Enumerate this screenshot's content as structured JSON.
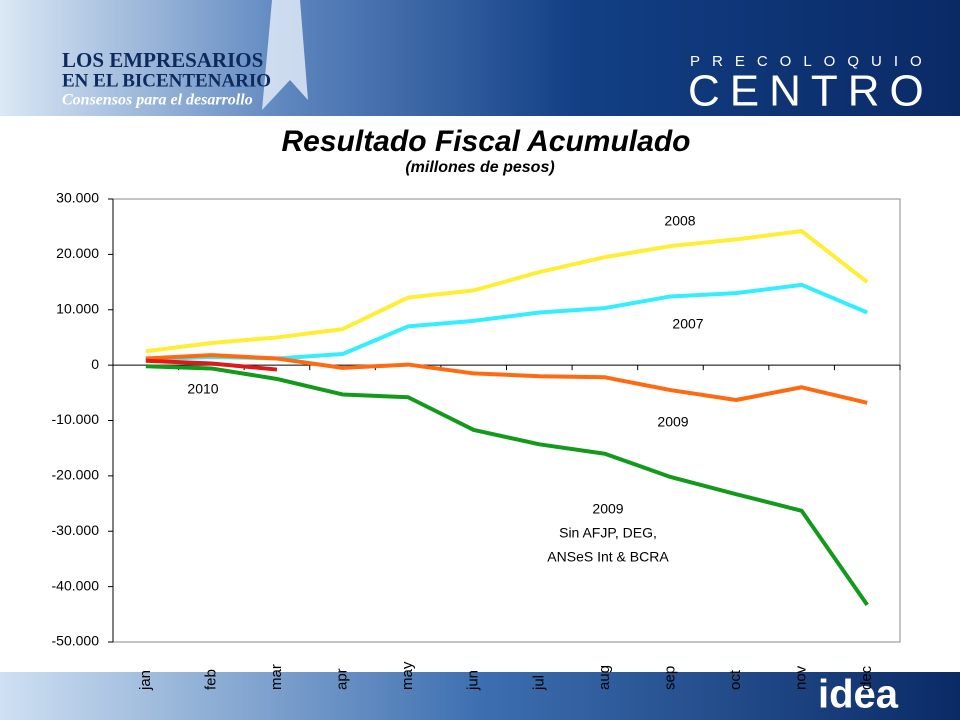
{
  "header": {
    "org_line1": "LOS EMPRESARIOS",
    "org_line2": "EN EL BICENTENARIO",
    "org_tagline": "Consensos para el desarrollo",
    "event_top": "PRECOLOQUIO",
    "event_main": "CENTRO"
  },
  "footer": {
    "brand": "idea"
  },
  "chart_data": {
    "type": "line",
    "title": "Resultado Fiscal Acumulado",
    "subtitle": "(millones de pesos)",
    "categories": [
      "jan",
      "feb",
      "mar",
      "apr",
      "may",
      "jun",
      "jul",
      "aug",
      "sep",
      "oct",
      "nov",
      "dec"
    ],
    "series": [
      {
        "name": "2008",
        "color": "#ffee33",
        "values": [
          2500,
          4000,
          5000,
          6500,
          12200,
          13500,
          16800,
          19500,
          21500,
          22700,
          24200,
          15000
        ]
      },
      {
        "name": "2007",
        "color": "#33eeff",
        "values": [
          1000,
          1500,
          1200,
          2000,
          7000,
          8000,
          9500,
          10300,
          12400,
          13000,
          14500,
          9500
        ]
      },
      {
        "name": "2009",
        "color": "#ff6a10",
        "values": [
          1200,
          1800,
          1200,
          -500,
          100,
          -1500,
          -2000,
          -2200,
          -4500,
          -6300,
          -4000,
          -6800
        ]
      },
      {
        "name": "2009 Sin AFJP, DEG, ANSeS Int & BCRA",
        "color": "#129a1a",
        "values": [
          -200,
          -600,
          -2500,
          -5300,
          -5800,
          -11700,
          -14300,
          -16000,
          -20200,
          -23300,
          -26300,
          -43300
        ]
      },
      {
        "name": "2010",
        "color": "#e01818",
        "values": [
          800,
          300,
          -800,
          null,
          null,
          null,
          null,
          null,
          null,
          null,
          null,
          null
        ]
      }
    ],
    "annotations": [
      "2008",
      "2007",
      "2010",
      "2009",
      "2009",
      "Sin AFJP, DEG,",
      "ANSeS Int & BCRA"
    ],
    "ylim": [
      -50000,
      30000
    ],
    "yticks": [
      {
        "value": -50000,
        "label": "-50.000"
      },
      {
        "value": -40000,
        "label": "-40.000"
      },
      {
        "value": -30000,
        "label": "-30.000"
      },
      {
        "value": -20000,
        "label": "-20.000"
      },
      {
        "value": -10000,
        "label": "-10.000"
      },
      0,
      {
        "value": 10000,
        "label": "10.000"
      },
      {
        "value": 20000,
        "label": "20.000"
      },
      {
        "value": 30000,
        "label": "30.000"
      }
    ],
    "grid": false
  }
}
